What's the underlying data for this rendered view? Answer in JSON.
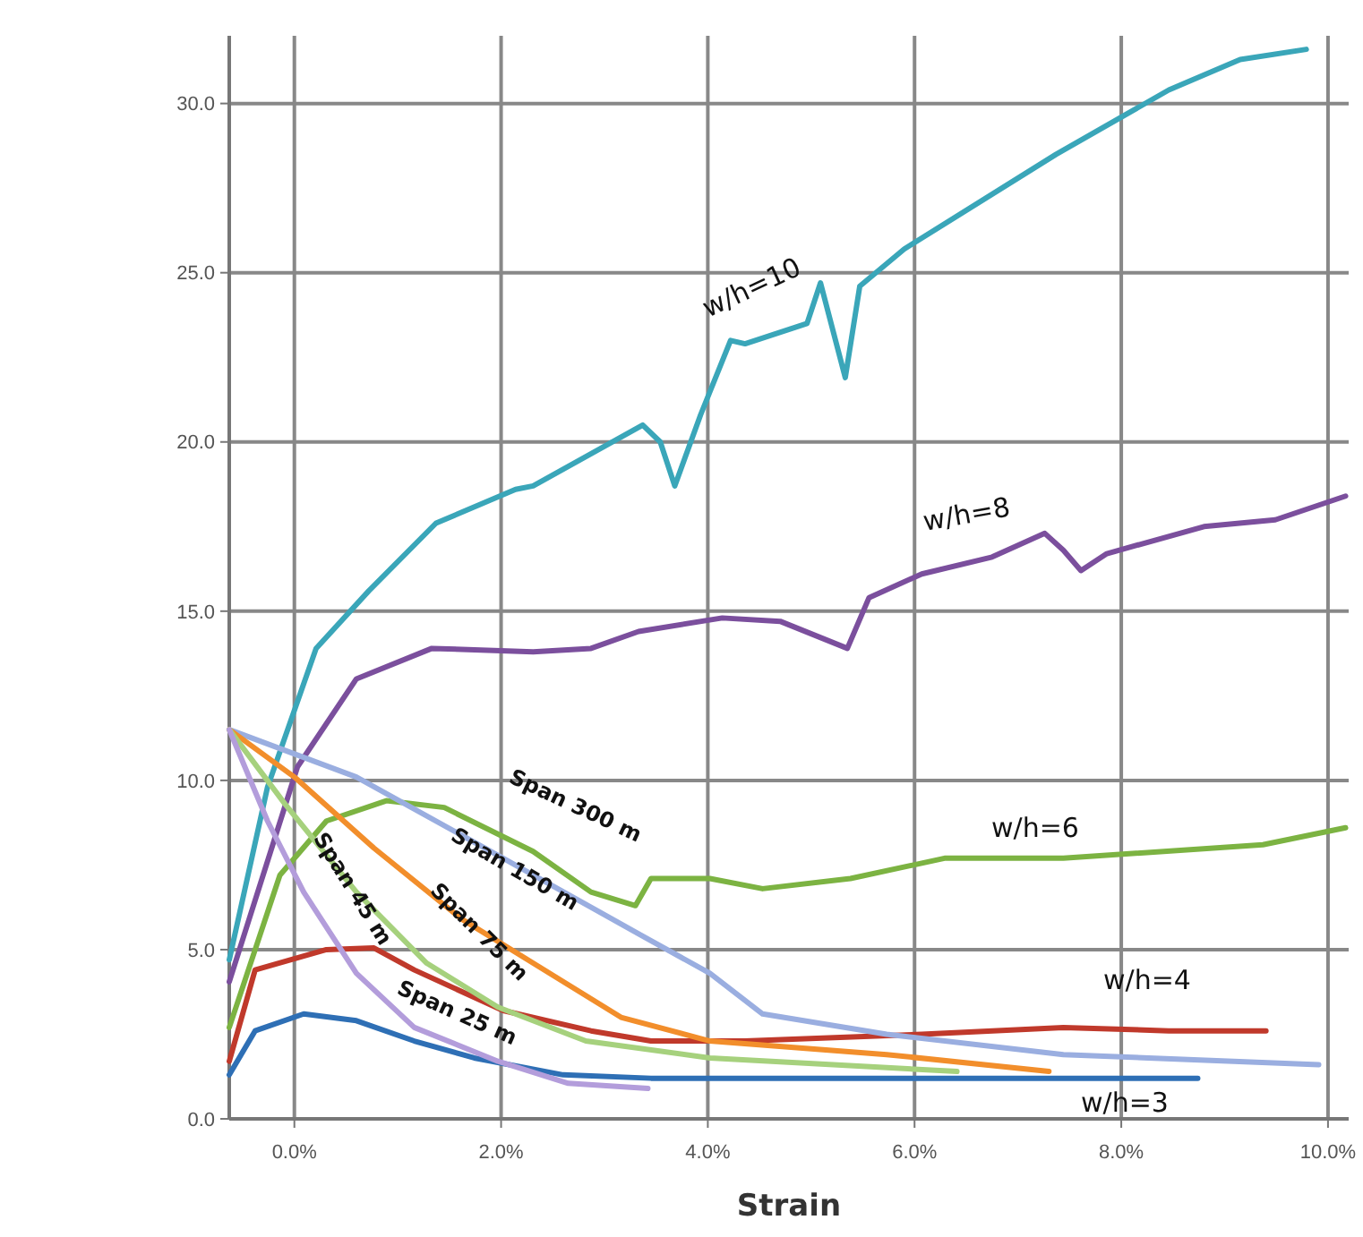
{
  "chart_data": {
    "type": "line",
    "xlabel": "Strain",
    "xlim": [
      -0.63,
      10.2
    ],
    "ylim": [
      0,
      32
    ],
    "xticks": [
      {
        "value": 0,
        "label": "0.0%"
      },
      {
        "value": 2,
        "label": "2.0%"
      },
      {
        "value": 4,
        "label": "4.0%"
      },
      {
        "value": 6,
        "label": "6.0%"
      },
      {
        "value": 8,
        "label": "8.0%"
      },
      {
        "value": 10,
        "label": "10.0%"
      }
    ],
    "yticks": [
      {
        "value": 0,
        "label": "0.0"
      },
      {
        "value": 5,
        "label": "5.0"
      },
      {
        "value": 10,
        "label": "10.0"
      },
      {
        "value": 15,
        "label": "15.0"
      },
      {
        "value": 20,
        "label": "20.0"
      },
      {
        "value": 25,
        "label": "25.0"
      },
      {
        "value": 30,
        "label": "30.0"
      }
    ],
    "grid": true,
    "marker": "none",
    "line_style": "solid",
    "annotations": [
      {
        "text": "Span 300 m",
        "x": 2.31,
        "y": 7.9
      }
    ],
    "series": [
      {
        "name": "w/h=10",
        "color": "#3aa6b9",
        "x": [
          -0.63,
          -0.26,
          0.21,
          0.72,
          1.37,
          2.14,
          2.31,
          3.37,
          3.54,
          3.68,
          3.93,
          4.22,
          4.36,
          4.96,
          5.09,
          5.21,
          5.33,
          5.47,
          5.9,
          7.37,
          8.46,
          9.15,
          9.79
        ],
        "values": [
          4.7,
          9.8,
          13.9,
          15.6,
          17.6,
          18.6,
          18.7,
          20.5,
          20,
          18.7,
          20.8,
          23,
          22.9,
          23.5,
          24.7,
          23.3,
          21.9,
          24.6,
          25.7,
          28.5,
          30.4,
          31.3,
          31.6
        ]
      },
      {
        "name": "w/h=8",
        "color": "#7b4f9d",
        "x": [
          -0.63,
          0.03,
          0.6,
          1.33,
          2.31,
          2.87,
          3.33,
          4.14,
          4.7,
          5.35,
          5.56,
          6.07,
          6.75,
          7.26,
          7.44,
          7.61,
          7.86,
          8.8,
          9.49,
          10.17
        ],
        "values": [
          4.05,
          10.4,
          13,
          13.9,
          13.8,
          13.9,
          14.4,
          14.8,
          14.7,
          13.9,
          15.4,
          16.1,
          16.6,
          17.3,
          16.8,
          16.2,
          16.7,
          17.5,
          17.7,
          18.4
        ]
      },
      {
        "name": "w/h=6",
        "color": "#7cb342",
        "x": [
          -0.63,
          -0.14,
          0.31,
          0.89,
          1.45,
          2.31,
          2.87,
          3.3,
          3.45,
          4.02,
          4.53,
          5.38,
          6.29,
          7.44,
          9.37,
          10.17
        ],
        "values": [
          2.7,
          7.2,
          8.8,
          9.4,
          9.2,
          7.9,
          6.7,
          6.3,
          7.1,
          7.1,
          6.8,
          7.1,
          7.7,
          7.7,
          8.1,
          8.6
        ]
      },
      {
        "name": "w/h=4",
        "color": "#c0392b",
        "x": [
          -0.63,
          -0.38,
          0.31,
          0.77,
          1.16,
          2.02,
          2.87,
          3.45,
          4.36,
          6.07,
          7.44,
          8.46,
          9.4
        ],
        "values": [
          1.7,
          4.4,
          5,
          5.05,
          4.4,
          3.2,
          2.6,
          2.3,
          2.3,
          2.5,
          2.7,
          2.6,
          2.6
        ]
      },
      {
        "name": "w/h=3",
        "color": "#2e6fb5",
        "x": [
          -0.63,
          -0.38,
          0.09,
          0.6,
          1.16,
          1.74,
          2.6,
          3.45,
          5.73,
          8.74
        ],
        "values": [
          1.3,
          2.6,
          3.1,
          2.9,
          2.3,
          1.8,
          1.3,
          1.2,
          1.2,
          1.2
        ]
      },
      {
        "name": "Span 150 m",
        "color": "#9aaee0",
        "x": [
          -0.63,
          0.6,
          2.02,
          3.37,
          4.02,
          4.53,
          5.73,
          7.44,
          9.91
        ],
        "values": [
          11.5,
          10.1,
          7.7,
          5.4,
          4.3,
          3.1,
          2.5,
          1.9,
          1.6
        ]
      },
      {
        "name": "Span 75 m",
        "color": "#f28e2b",
        "x": [
          -0.63,
          0,
          0.77,
          1.62,
          2.31,
          3.16,
          4.02,
          5.73,
          7.3
        ],
        "values": [
          11.5,
          10.1,
          8,
          5.9,
          4.6,
          3,
          2.3,
          1.9,
          1.4
        ]
      },
      {
        "name": "Span 45 m",
        "color": "#a6d17d",
        "x": [
          -0.63,
          -0.09,
          0.6,
          1.28,
          1.97,
          2.82,
          4.02,
          6.41
        ],
        "values": [
          11.5,
          9.3,
          6.7,
          4.6,
          3.3,
          2.3,
          1.8,
          1.4
        ]
      },
      {
        "name": "Span 25 m",
        "color": "#b39ddb",
        "x": [
          -0.63,
          -0.26,
          0.09,
          0.6,
          1.16,
          1.97,
          2.65,
          3.42
        ],
        "values": [
          11.5,
          8.8,
          6.7,
          4.3,
          2.7,
          1.7,
          1.05,
          0.9
        ]
      }
    ]
  }
}
